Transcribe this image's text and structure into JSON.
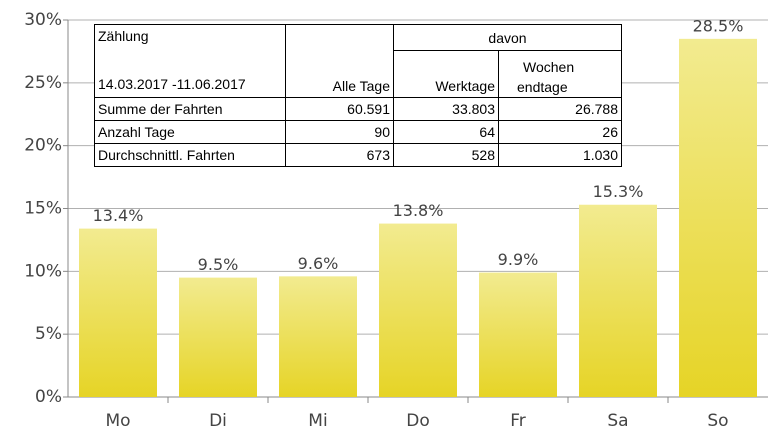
{
  "chart_data": {
    "type": "bar",
    "categories": [
      "Mo",
      "Di",
      "Mi",
      "Do",
      "Fr",
      "Sa",
      "So"
    ],
    "values": [
      13.4,
      9.5,
      9.6,
      13.8,
      9.9,
      15.3,
      28.5
    ],
    "value_labels": [
      "13.4%",
      "9.5%",
      "9.6%",
      "13.8%",
      "9.9%",
      "15.3%",
      "28.5%"
    ],
    "color": "#e8d830",
    "ylim": [
      0,
      30
    ],
    "yticks": [
      {
        "value": 0,
        "label": "0%"
      },
      {
        "value": 5,
        "label": "5%"
      },
      {
        "value": 10,
        "label": "10%"
      },
      {
        "value": 15,
        "label": "15%"
      },
      {
        "value": 20,
        "label": "20%"
      },
      {
        "value": 25,
        "label": "25%"
      },
      {
        "value": 30,
        "label": "30%"
      }
    ],
    "grid": true
  },
  "table": {
    "header": {
      "title": "Zählung",
      "period": "14.03.2017 -11.06.2017",
      "all": "Alle Tage",
      "group": "davon",
      "weekdays": "Werktage",
      "weekend": [
        "Wochen",
        "endtage"
      ]
    },
    "rows": [
      [
        "Summe der Fahrten",
        "60.591",
        "33.803",
        "26.788"
      ],
      [
        "Anzahl Tage",
        "90",
        "64",
        "26"
      ],
      [
        "Durchschnittl. Fahrten",
        "673",
        "528",
        "1.030"
      ]
    ]
  }
}
